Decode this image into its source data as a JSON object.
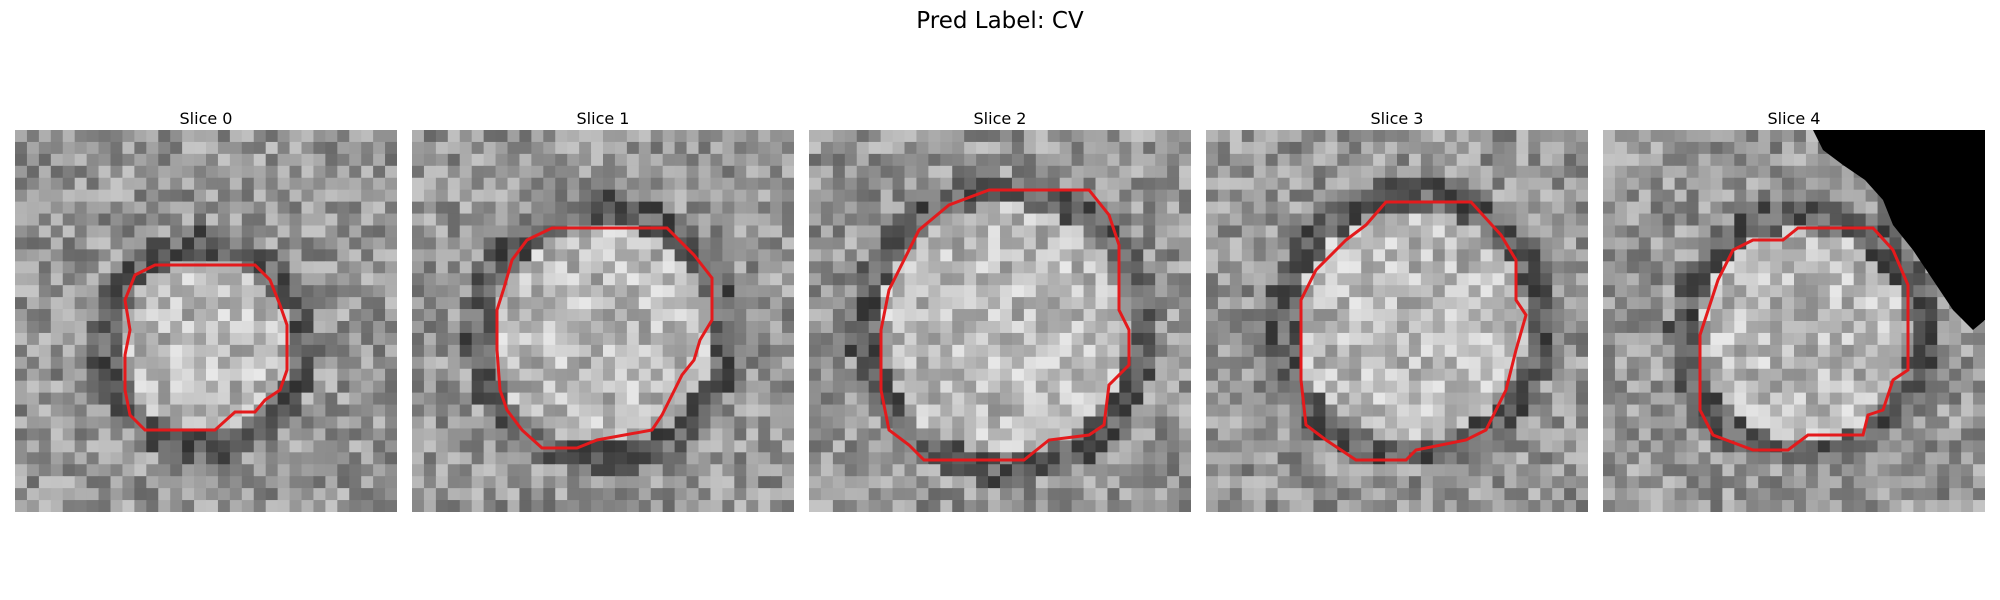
{
  "figure": {
    "title": "Pred Label: CV"
  },
  "panels": [
    {
      "title": "Slice 0",
      "tone": "mid-gray speckled noise, darker ring around a roughly round region"
    },
    {
      "title": "Slice 1",
      "tone": "larger bright round region with dark surrounding ring"
    },
    {
      "title": "Slice 2",
      "tone": "large round speckled region with dark rim"
    },
    {
      "title": "Slice 3",
      "tone": "round region slightly shifted right"
    },
    {
      "title": "Slice 4",
      "tone": "bright rounded region with black corner at top-right"
    }
  ],
  "contour_color": "#e41a1c",
  "background_color": "#ffffff"
}
